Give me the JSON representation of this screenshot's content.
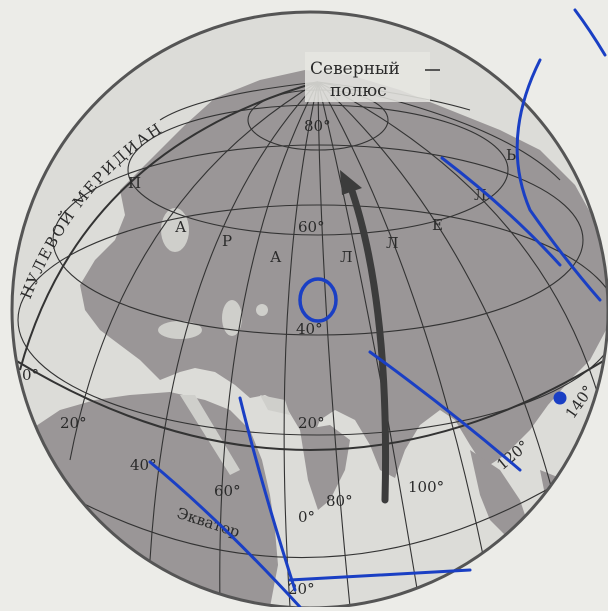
{
  "labels": {
    "north_pole_1": "Северный",
    "north_pole_2": "полюс",
    "prime_meridian": "НУЛЕВОЙ МЕРИДИАН",
    "parallel": [
      "П",
      "А",
      "Р",
      "А",
      "Л",
      "Л",
      "Е",
      "Л",
      "Ь"
    ],
    "equator": "Экватор"
  },
  "degrees": {
    "lat_80": "80°",
    "lat_60": "60°",
    "lat_40": "40°",
    "lat_20": "20°",
    "lon_0_left": "0°",
    "lon_20_left": "20°",
    "lon_40": "40°",
    "lon_60": "60°",
    "eq_0": "0°",
    "lon_80": "80°",
    "lon_100": "100°",
    "lon_120": "120°",
    "lon_140": "140°",
    "bottom_20": "20°"
  },
  "colors": {
    "ocean": "#dcdcd8",
    "land": "#9a9697",
    "grid": "#333333",
    "arrow": "#3c3c3c",
    "pen": "#1a3fc4"
  }
}
